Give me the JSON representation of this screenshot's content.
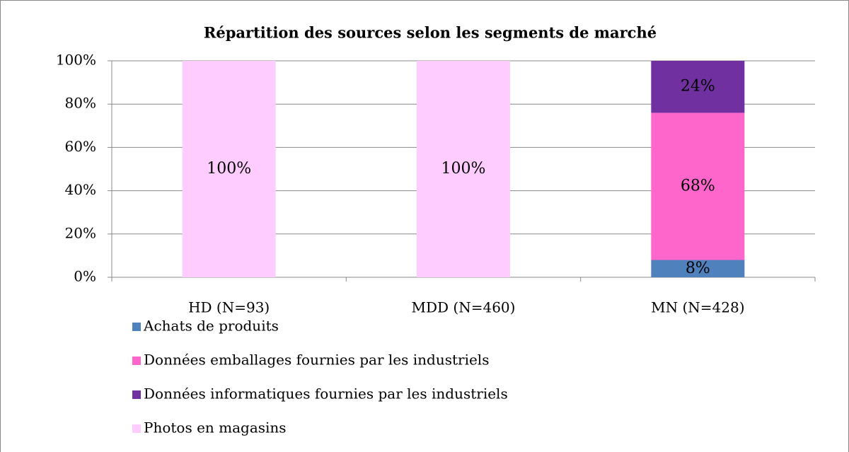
{
  "chart_data": {
    "type": "stacked_bar",
    "title": "Répartition des sources selon les segments de marché",
    "categories": [
      "HD (N=93)",
      "MDD (N=460)",
      "MN (N=428)"
    ],
    "series": [
      {
        "name": "Achats de produits",
        "color": "#4f81bd",
        "values": [
          0,
          0,
          8
        ],
        "value_labels": [
          null,
          null,
          "8%"
        ]
      },
      {
        "name": "Données emballages fournies par les industriels",
        "color": "#ff66cc",
        "values": [
          0,
          0,
          68
        ],
        "value_labels": [
          null,
          null,
          "68%"
        ]
      },
      {
        "name": "Données informatiques fournies par les industriels",
        "color": "#7030a0",
        "values": [
          0,
          0,
          24
        ],
        "value_labels": [
          null,
          null,
          "24%"
        ]
      },
      {
        "name": "Photos en magasins",
        "color": "#ffccff",
        "values": [
          100,
          100,
          0
        ],
        "value_labels": [
          "100%",
          "100%",
          null
        ]
      }
    ],
    "ylim": [
      0,
      100
    ],
    "yticks": [
      {
        "value": 0,
        "label": "0%"
      },
      {
        "value": 20,
        "label": "20%"
      },
      {
        "value": 40,
        "label": "40%"
      },
      {
        "value": 60,
        "label": "60%"
      },
      {
        "value": 80,
        "label": "80%"
      },
      {
        "value": 100,
        "label": "100%"
      }
    ],
    "grid": true,
    "legend": "bottom-left"
  }
}
